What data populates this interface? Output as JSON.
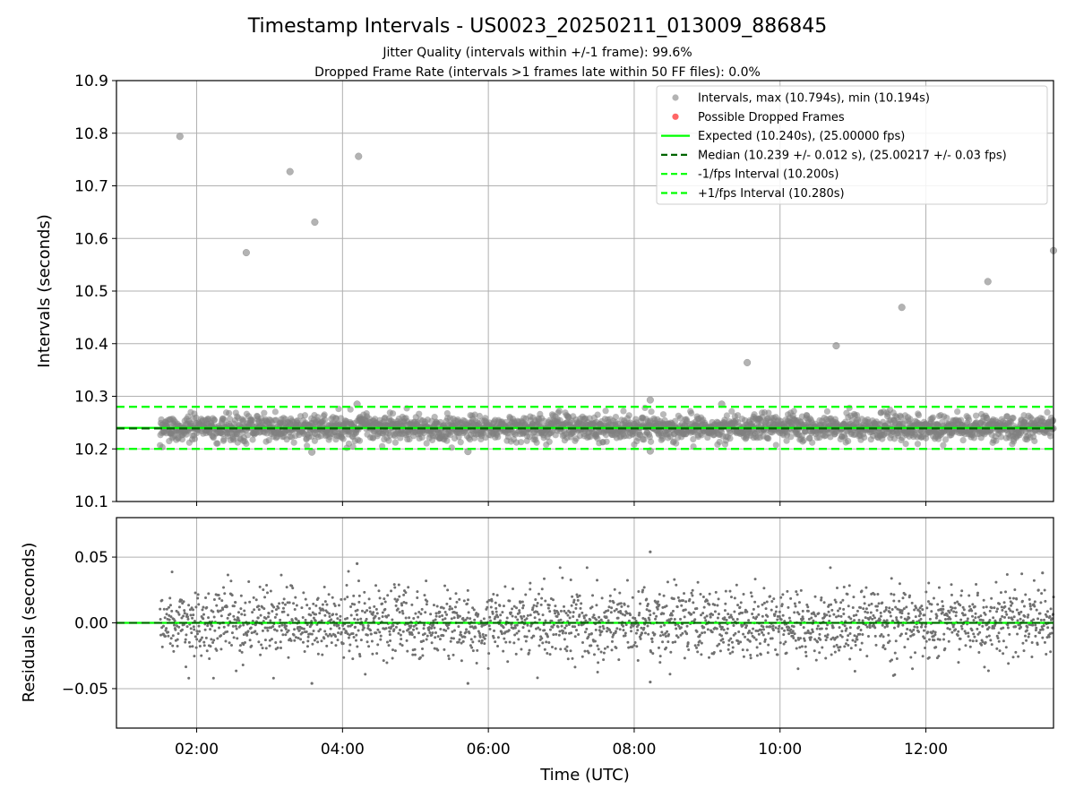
{
  "chart_data": {
    "type": "scatter",
    "title": "Timestamp Intervals - US0023_20250211_013009_886845",
    "subtitle_lines": [
      "Jitter Quality (intervals within +/-1 frame): 99.6%",
      "Dropped Frame Rate (intervals >1 frames late within 50 FF files): 0.0%"
    ],
    "xlabel": "Time (UTC)",
    "x_range_hours": [
      0.9,
      13.75
    ],
    "x_data_range_hours": [
      1.5,
      13.75
    ],
    "xticks": [
      {
        "value": 2,
        "label": "02:00"
      },
      {
        "value": 4,
        "label": "04:00"
      },
      {
        "value": 6,
        "label": "06:00"
      },
      {
        "value": 8,
        "label": "08:00"
      },
      {
        "value": 10,
        "label": "10:00"
      },
      {
        "value": 12,
        "label": "12:00"
      }
    ],
    "grid": true,
    "legend_position": "upper right",
    "panels": {
      "intervals": {
        "ylabel": "Intervals (seconds)",
        "ylim": [
          10.1,
          10.9
        ],
        "yticks": [
          "10.1",
          "10.2",
          "10.3",
          "10.4",
          "10.5",
          "10.6",
          "10.7",
          "10.8",
          "10.9"
        ],
        "band_center": 10.24,
        "band_sd": 0.012,
        "outliers": [
          {
            "x": 1.77,
            "y": 10.794
          },
          {
            "x": 2.68,
            "y": 10.573
          },
          {
            "x": 3.28,
            "y": 10.727
          },
          {
            "x": 3.62,
            "y": 10.631
          },
          {
            "x": 4.22,
            "y": 10.756
          },
          {
            "x": 9.55,
            "y": 10.364
          },
          {
            "x": 10.77,
            "y": 10.396
          },
          {
            "x": 11.67,
            "y": 10.469
          },
          {
            "x": 12.85,
            "y": 10.518
          },
          {
            "x": 13.75,
            "y": 10.577
          },
          {
            "x": 3.58,
            "y": 10.194
          },
          {
            "x": 5.72,
            "y": 10.195
          },
          {
            "x": 8.22,
            "y": 10.196
          },
          {
            "x": 8.22,
            "y": 10.293
          },
          {
            "x": 4.2,
            "y": 10.285
          },
          {
            "x": 9.2,
            "y": 10.285
          }
        ],
        "lines": {
          "expected": 10.24,
          "median": 10.239,
          "lower": 10.2,
          "upper": 10.28
        }
      },
      "residuals": {
        "ylabel": "Residuals (seconds)",
        "ylim": [
          -0.08,
          0.08
        ],
        "yticks": [
          {
            "value": 0.05,
            "label": "0.05"
          },
          {
            "value": 0.0,
            "label": "0.00"
          },
          {
            "value": -0.05,
            "label": "−0.05"
          }
        ],
        "band_sd": 0.013,
        "notable_points": [
          {
            "x": 8.22,
            "y": 0.054
          },
          {
            "x": 4.2,
            "y": 0.045
          },
          {
            "x": 5.72,
            "y": -0.046
          },
          {
            "x": 8.22,
            "y": -0.045
          },
          {
            "x": 3.58,
            "y": -0.046
          },
          {
            "x": 13.6,
            "y": 0.038
          }
        ]
      }
    },
    "legend": [
      {
        "label": "Intervals, max (10.794s), min (10.194s)",
        "kind": "dot",
        "color": "#808080"
      },
      {
        "label": "Possible Dropped Frames",
        "kind": "dot",
        "color": "#ff0000"
      },
      {
        "label": "Expected (10.240s), (25.00000 fps)",
        "kind": "line",
        "color": "#00ff00",
        "dash": false
      },
      {
        "label": "Median (10.239 +/- 0.012 s), (25.00217 +/- 0.03 fps)",
        "kind": "line",
        "color": "#006400",
        "dash": true
      },
      {
        "label": "-1/fps Interval (10.200s)",
        "kind": "line",
        "color": "#00ff00",
        "dash": true
      },
      {
        "label": "+1/fps Interval (10.280s)",
        "kind": "line",
        "color": "#00ff00",
        "dash": true
      }
    ],
    "colors": {
      "points": "#808080",
      "expected": "#00ff00",
      "median": "#006400",
      "bounds": "#00ff00",
      "dropped": "#ff0000",
      "grid": "#b0b0b0"
    }
  }
}
